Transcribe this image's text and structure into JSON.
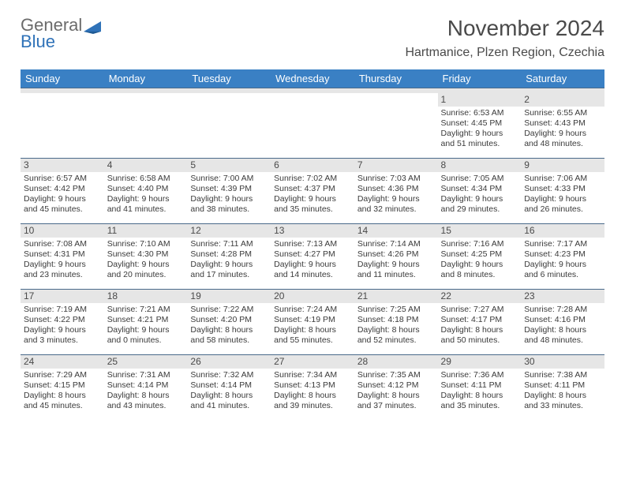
{
  "logo": {
    "word1": "General",
    "word2": "Blue"
  },
  "title": "November 2024",
  "subtitle": "Hartmanice, Plzen Region, Czechia",
  "colors": {
    "header_bg": "#3a80c4",
    "header_fg": "#ffffff",
    "daynum_bg": "#e6e6e6",
    "row_border": "#4a6a8a",
    "logo_gray": "#6b6b6b",
    "logo_blue": "#2f72b8",
    "background": "#ffffff",
    "text": "#3a3a3a"
  },
  "font": {
    "family": "Arial",
    "title_size_pt": 21,
    "subtitle_size_pt": 12,
    "weekday_size_pt": 10,
    "cell_size_pt": 8
  },
  "layout": {
    "columns": 7,
    "rows": 5,
    "start_weekday": "Sunday"
  },
  "weekdays": [
    "Sunday",
    "Monday",
    "Tuesday",
    "Wednesday",
    "Thursday",
    "Friday",
    "Saturday"
  ],
  "days": [
    null,
    null,
    null,
    null,
    null,
    {
      "n": "1",
      "sunrise": "Sunrise: 6:53 AM",
      "sunset": "Sunset: 4:45 PM",
      "d1": "Daylight: 9 hours",
      "d2": "and 51 minutes."
    },
    {
      "n": "2",
      "sunrise": "Sunrise: 6:55 AM",
      "sunset": "Sunset: 4:43 PM",
      "d1": "Daylight: 9 hours",
      "d2": "and 48 minutes."
    },
    {
      "n": "3",
      "sunrise": "Sunrise: 6:57 AM",
      "sunset": "Sunset: 4:42 PM",
      "d1": "Daylight: 9 hours",
      "d2": "and 45 minutes."
    },
    {
      "n": "4",
      "sunrise": "Sunrise: 6:58 AM",
      "sunset": "Sunset: 4:40 PM",
      "d1": "Daylight: 9 hours",
      "d2": "and 41 minutes."
    },
    {
      "n": "5",
      "sunrise": "Sunrise: 7:00 AM",
      "sunset": "Sunset: 4:39 PM",
      "d1": "Daylight: 9 hours",
      "d2": "and 38 minutes."
    },
    {
      "n": "6",
      "sunrise": "Sunrise: 7:02 AM",
      "sunset": "Sunset: 4:37 PM",
      "d1": "Daylight: 9 hours",
      "d2": "and 35 minutes."
    },
    {
      "n": "7",
      "sunrise": "Sunrise: 7:03 AM",
      "sunset": "Sunset: 4:36 PM",
      "d1": "Daylight: 9 hours",
      "d2": "and 32 minutes."
    },
    {
      "n": "8",
      "sunrise": "Sunrise: 7:05 AM",
      "sunset": "Sunset: 4:34 PM",
      "d1": "Daylight: 9 hours",
      "d2": "and 29 minutes."
    },
    {
      "n": "9",
      "sunrise": "Sunrise: 7:06 AM",
      "sunset": "Sunset: 4:33 PM",
      "d1": "Daylight: 9 hours",
      "d2": "and 26 minutes."
    },
    {
      "n": "10",
      "sunrise": "Sunrise: 7:08 AM",
      "sunset": "Sunset: 4:31 PM",
      "d1": "Daylight: 9 hours",
      "d2": "and 23 minutes."
    },
    {
      "n": "11",
      "sunrise": "Sunrise: 7:10 AM",
      "sunset": "Sunset: 4:30 PM",
      "d1": "Daylight: 9 hours",
      "d2": "and 20 minutes."
    },
    {
      "n": "12",
      "sunrise": "Sunrise: 7:11 AM",
      "sunset": "Sunset: 4:28 PM",
      "d1": "Daylight: 9 hours",
      "d2": "and 17 minutes."
    },
    {
      "n": "13",
      "sunrise": "Sunrise: 7:13 AM",
      "sunset": "Sunset: 4:27 PM",
      "d1": "Daylight: 9 hours",
      "d2": "and 14 minutes."
    },
    {
      "n": "14",
      "sunrise": "Sunrise: 7:14 AM",
      "sunset": "Sunset: 4:26 PM",
      "d1": "Daylight: 9 hours",
      "d2": "and 11 minutes."
    },
    {
      "n": "15",
      "sunrise": "Sunrise: 7:16 AM",
      "sunset": "Sunset: 4:25 PM",
      "d1": "Daylight: 9 hours",
      "d2": "and 8 minutes."
    },
    {
      "n": "16",
      "sunrise": "Sunrise: 7:17 AM",
      "sunset": "Sunset: 4:23 PM",
      "d1": "Daylight: 9 hours",
      "d2": "and 6 minutes."
    },
    {
      "n": "17",
      "sunrise": "Sunrise: 7:19 AM",
      "sunset": "Sunset: 4:22 PM",
      "d1": "Daylight: 9 hours",
      "d2": "and 3 minutes."
    },
    {
      "n": "18",
      "sunrise": "Sunrise: 7:21 AM",
      "sunset": "Sunset: 4:21 PM",
      "d1": "Daylight: 9 hours",
      "d2": "and 0 minutes."
    },
    {
      "n": "19",
      "sunrise": "Sunrise: 7:22 AM",
      "sunset": "Sunset: 4:20 PM",
      "d1": "Daylight: 8 hours",
      "d2": "and 58 minutes."
    },
    {
      "n": "20",
      "sunrise": "Sunrise: 7:24 AM",
      "sunset": "Sunset: 4:19 PM",
      "d1": "Daylight: 8 hours",
      "d2": "and 55 minutes."
    },
    {
      "n": "21",
      "sunrise": "Sunrise: 7:25 AM",
      "sunset": "Sunset: 4:18 PM",
      "d1": "Daylight: 8 hours",
      "d2": "and 52 minutes."
    },
    {
      "n": "22",
      "sunrise": "Sunrise: 7:27 AM",
      "sunset": "Sunset: 4:17 PM",
      "d1": "Daylight: 8 hours",
      "d2": "and 50 minutes."
    },
    {
      "n": "23",
      "sunrise": "Sunrise: 7:28 AM",
      "sunset": "Sunset: 4:16 PM",
      "d1": "Daylight: 8 hours",
      "d2": "and 48 minutes."
    },
    {
      "n": "24",
      "sunrise": "Sunrise: 7:29 AM",
      "sunset": "Sunset: 4:15 PM",
      "d1": "Daylight: 8 hours",
      "d2": "and 45 minutes."
    },
    {
      "n": "25",
      "sunrise": "Sunrise: 7:31 AM",
      "sunset": "Sunset: 4:14 PM",
      "d1": "Daylight: 8 hours",
      "d2": "and 43 minutes."
    },
    {
      "n": "26",
      "sunrise": "Sunrise: 7:32 AM",
      "sunset": "Sunset: 4:14 PM",
      "d1": "Daylight: 8 hours",
      "d2": "and 41 minutes."
    },
    {
      "n": "27",
      "sunrise": "Sunrise: 7:34 AM",
      "sunset": "Sunset: 4:13 PM",
      "d1": "Daylight: 8 hours",
      "d2": "and 39 minutes."
    },
    {
      "n": "28",
      "sunrise": "Sunrise: 7:35 AM",
      "sunset": "Sunset: 4:12 PM",
      "d1": "Daylight: 8 hours",
      "d2": "and 37 minutes."
    },
    {
      "n": "29",
      "sunrise": "Sunrise: 7:36 AM",
      "sunset": "Sunset: 4:11 PM",
      "d1": "Daylight: 8 hours",
      "d2": "and 35 minutes."
    },
    {
      "n": "30",
      "sunrise": "Sunrise: 7:38 AM",
      "sunset": "Sunset: 4:11 PM",
      "d1": "Daylight: 8 hours",
      "d2": "and 33 minutes."
    }
  ]
}
